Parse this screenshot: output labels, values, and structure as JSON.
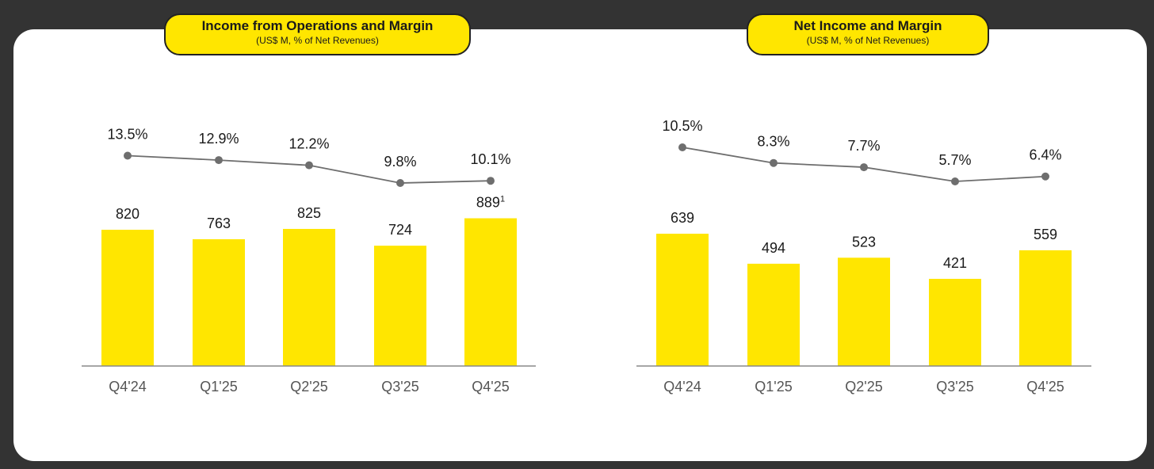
{
  "colors": {
    "background": "#333333",
    "card": "#ffffff",
    "accent": "#ffe600",
    "line": "#6e6e6e",
    "text": "#1a1a1a",
    "axis_label": "#555555"
  },
  "chart_data": [
    {
      "type": "bar",
      "title": "Income from Operations and Margin",
      "subtitle": "(US$ M, % of Net Revenues)",
      "categories": [
        "Q4'24",
        "Q1'25",
        "Q2'25",
        "Q3'25",
        "Q4'25"
      ],
      "series": [
        {
          "type": "bar",
          "values": [
            820,
            763,
            825,
            724,
            889
          ],
          "labels": [
            "820",
            "763",
            "825",
            "724",
            "889"
          ],
          "footnotes": [
            "",
            "",
            "",
            "",
            "1"
          ]
        },
        {
          "type": "line",
          "values": [
            13.5,
            12.9,
            12.2,
            9.8,
            10.1
          ],
          "labels": [
            "13.5%",
            "12.9%",
            "12.2%",
            "9.8%",
            "10.1%"
          ]
        }
      ],
      "grid": false
    },
    {
      "type": "bar",
      "title": "Net Income and Margin",
      "subtitle": "(US$ M, % of Net Revenues)",
      "categories": [
        "Q4'24",
        "Q1'25",
        "Q2'25",
        "Q3'25",
        "Q4'25"
      ],
      "series": [
        {
          "type": "bar",
          "values": [
            639,
            494,
            523,
            421,
            559
          ],
          "labels": [
            "639",
            "494",
            "523",
            "421",
            "559"
          ],
          "footnotes": [
            "",
            "",
            "",
            "",
            ""
          ]
        },
        {
          "type": "line",
          "values": [
            10.5,
            8.3,
            7.7,
            5.7,
            6.4
          ],
          "labels": [
            "10.5%",
            "8.3%",
            "7.7%",
            "5.7%",
            "6.4%"
          ]
        }
      ],
      "grid": false
    }
  ]
}
